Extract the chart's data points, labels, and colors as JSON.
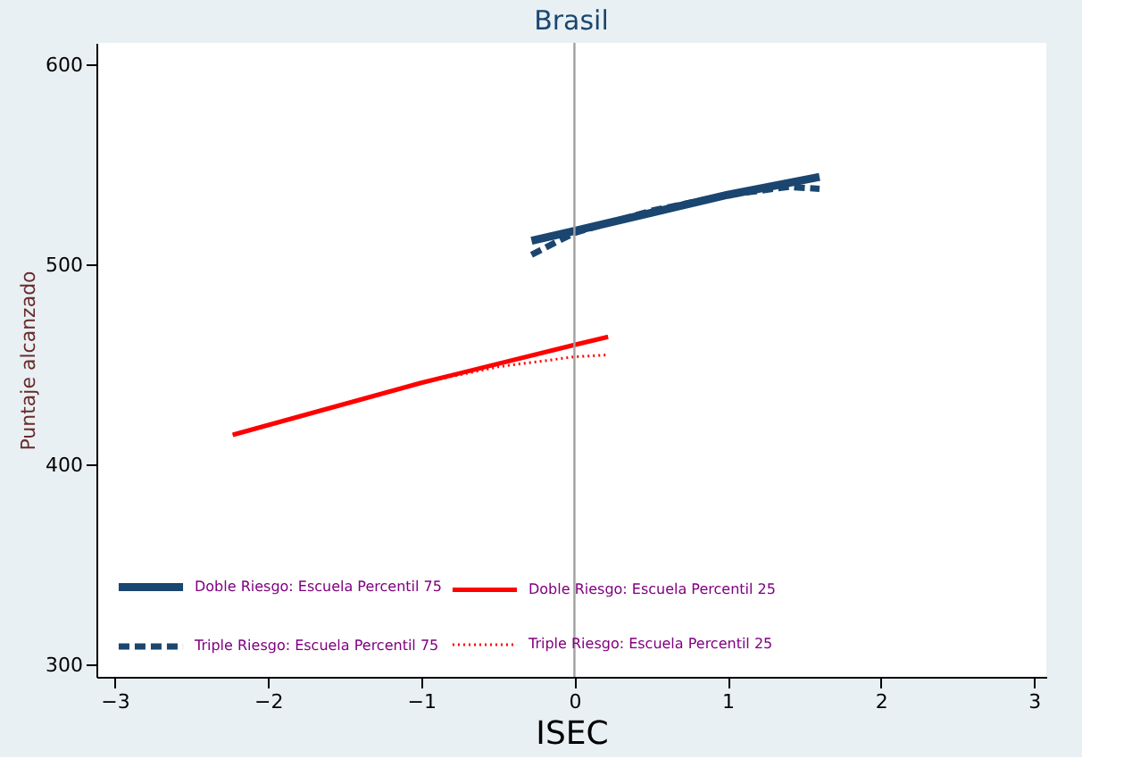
{
  "chart_data": {
    "type": "line",
    "title": "Brasil",
    "xlabel": "ISEC",
    "ylabel": "Puntaje alcanzado",
    "xlim": [
      -3.12,
      3.08
    ],
    "ylim": [
      294,
      611
    ],
    "xticks": [
      -3,
      -2,
      -1,
      0,
      1,
      2,
      3
    ],
    "yticks": [
      300,
      400,
      500,
      600
    ],
    "grid": false,
    "legend": "bottom",
    "marker": "none",
    "ref_lines": [
      {
        "axis": "x",
        "value": 0,
        "color": "#a0a0a0"
      }
    ],
    "series": [
      {
        "name": "Doble Riesgo: Escuela Percentil 75",
        "color": "#1a4670",
        "line_style": "solid",
        "x": [
          -0.28,
          0,
          0.5,
          1,
          1.6
        ],
        "values": [
          512,
          517,
          526,
          535,
          544
        ]
      },
      {
        "name": "Triple Riesgo: Escuela Percentil 75",
        "color": "#1a4670",
        "line_style": "dashed",
        "x": [
          -0.28,
          0,
          0.5,
          1,
          1.4,
          1.6
        ],
        "values": [
          505,
          516,
          527,
          535,
          539,
          538
        ]
      },
      {
        "name": "Doble Riesgo: Escuela Percentil 25",
        "color": "#ff0000",
        "line_style": "solid",
        "x": [
          -2.23,
          -1,
          0,
          0.22
        ],
        "values": [
          415,
          441,
          460,
          464
        ]
      },
      {
        "name": "Triple Riesgo: Escuela Percentil 25",
        "color": "#ff0000",
        "line_style": "dotted",
        "x": [
          -2.23,
          -1,
          -0.5,
          0,
          0.22
        ],
        "values": [
          415,
          441,
          449,
          454,
          455
        ]
      }
    ]
  }
}
